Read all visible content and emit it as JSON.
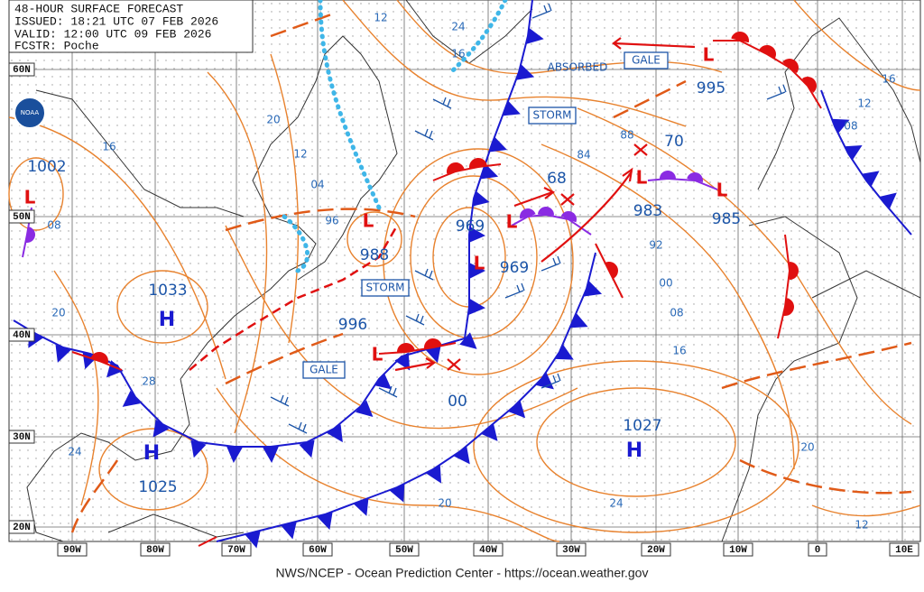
{
  "header": {
    "lines": [
      "48-HOUR SURFACE FORECAST",
      "ISSUED: 18:21 UTC 07 FEB 2026",
      "VALID: 12:00 UTC 09 FEB 2026",
      "FCSTR: Poche"
    ]
  },
  "footer": "NWS/NCEP - Ocean Prediction Center - https://ocean.weather.gov",
  "latitudes": [
    "60N",
    "50N",
    "40N",
    "30N",
    "20N"
  ],
  "longitudes": [
    "90W",
    "80W",
    "70W",
    "60W",
    "50W",
    "40W",
    "30W",
    "20W",
    "10W",
    "0",
    "10E"
  ],
  "logo": "NOAA",
  "systems": [
    "L",
    "H",
    "H",
    "H",
    "L",
    "L",
    "L",
    "L",
    "L",
    "L",
    "L"
  ],
  "pressures": [
    "1002",
    "1033",
    "1025",
    "1027",
    "988",
    "969",
    "969",
    "983",
    "985",
    "995",
    "996",
    "68",
    "70",
    "00"
  ],
  "warnings": [
    "ABSORBED",
    "GALE",
    "STORM",
    "STORM",
    "GALE"
  ],
  "isobar_labels": [
    "12",
    "24",
    "16",
    "20",
    "16",
    "12",
    "04",
    "96",
    "08",
    "20",
    "28",
    "24",
    "84",
    "88",
    "92",
    "00",
    "08",
    "16",
    "20",
    "24",
    "20",
    "12",
    "16",
    "12",
    "08"
  ]
}
